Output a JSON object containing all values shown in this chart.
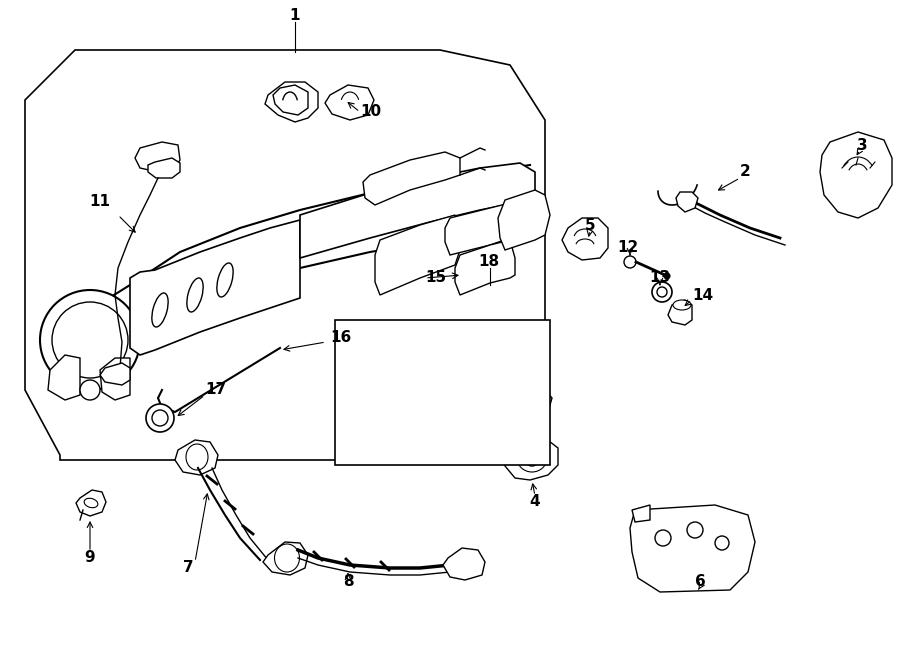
{
  "bg_color": "#ffffff",
  "line_color": "#000000",
  "fig_width": 9.0,
  "fig_height": 6.61,
  "dpi": 100,
  "font_size": 11,
  "lw": 1.0
}
